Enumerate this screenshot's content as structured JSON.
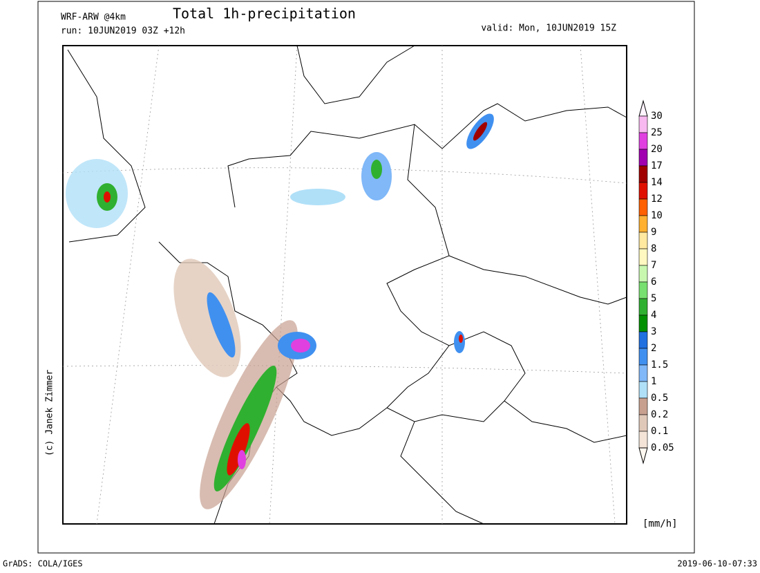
{
  "header": {
    "model": "WRF-ARW @4km",
    "run": "run: 10JUN2019 03Z +12h",
    "title": "Total 1h-precipitation",
    "valid": "valid: Mon, 10JUN2019 15Z"
  },
  "copyright": "(c) Janek Zimmer",
  "legend": {
    "levels": [
      30,
      25,
      20,
      17,
      14,
      12,
      10,
      9,
      8,
      7,
      6,
      5,
      4,
      3,
      2,
      1.5,
      1,
      0.5,
      0.2,
      0.1,
      0.05
    ],
    "colors": [
      "#fff4ff",
      "#f8b8f0",
      "#e040e0",
      "#a000b0",
      "#a00000",
      "#e01000",
      "#ff6000",
      "#ffb030",
      "#ffe8a0",
      "#fff8c0",
      "#c8f8b0",
      "#78e070",
      "#30b030",
      "#009000",
      "#2070e0",
      "#4090f0",
      "#80b8f8",
      "#b0e0f8",
      "#c8a090",
      "#e0c8b8",
      "#f4e4d8",
      "#fff8f0"
    ],
    "unit": "[mm/h]"
  },
  "footer": {
    "left": "GrADS: COLA/IGES",
    "right": "2019-06-10-07:33"
  }
}
